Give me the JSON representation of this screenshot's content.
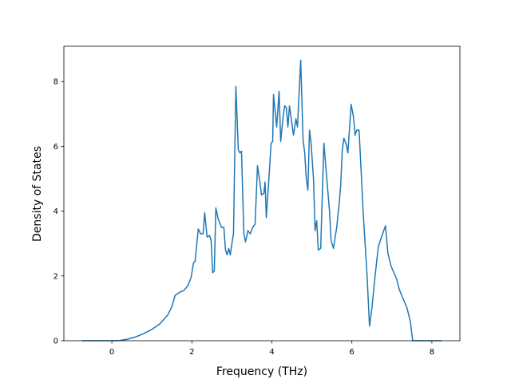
{
  "chart_data": {
    "type": "line",
    "x_label": "Frequency (THz)",
    "y_label": "Density of States",
    "xlim": [
      -1.2,
      8.7
    ],
    "xticks": [
      0,
      2,
      4,
      6,
      8
    ],
    "ylim": [
      0,
      9.09
    ],
    "yticks": [
      0,
      2,
      4,
      6,
      8
    ],
    "series": [
      {
        "color": "#1f77b4",
        "x": [
          -0.75,
          0,
          0.2,
          0.4,
          0.6,
          0.8,
          1.0,
          1.2,
          1.4,
          1.5,
          1.58,
          1.7,
          1.8,
          1.9,
          1.98,
          2.04,
          2.08,
          2.16,
          2.22,
          2.28,
          2.32,
          2.38,
          2.44,
          2.48,
          2.52,
          2.56,
          2.6,
          2.66,
          2.74,
          2.8,
          2.84,
          2.88,
          2.92,
          2.96,
          3.0,
          3.04,
          3.1,
          3.16,
          3.2,
          3.24,
          3.3,
          3.34,
          3.4,
          3.46,
          3.52,
          3.58,
          3.64,
          3.7,
          3.74,
          3.8,
          3.83,
          3.86,
          3.92,
          3.98,
          4.02,
          4.04,
          4.12,
          4.18,
          4.22,
          4.28,
          4.32,
          4.36,
          4.4,
          4.44,
          4.5,
          4.54,
          4.6,
          4.64,
          4.72,
          4.78,
          4.82,
          4.86,
          4.9,
          4.94,
          4.98,
          5.04,
          5.08,
          5.12,
          5.16,
          5.22,
          5.3,
          5.36,
          5.4,
          5.44,
          5.48,
          5.54,
          5.62,
          5.68,
          5.72,
          5.76,
          5.8,
          5.86,
          5.9,
          5.98,
          6.04,
          6.08,
          6.12,
          6.18,
          6.28,
          6.38,
          6.44,
          6.5,
          6.58,
          6.66,
          6.74,
          6.84,
          6.9,
          6.98,
          7.12,
          7.18,
          7.28,
          7.38,
          7.46,
          7.52,
          8.24
        ],
        "values": [
          0,
          0,
          0.01,
          0.05,
          0.12,
          0.22,
          0.35,
          0.52,
          0.8,
          1.05,
          1.4,
          1.5,
          1.55,
          1.7,
          1.95,
          2.4,
          2.45,
          3.45,
          3.3,
          3.3,
          3.95,
          3.2,
          3.25,
          3.1,
          2.1,
          2.15,
          4.1,
          3.75,
          3.5,
          3.5,
          2.8,
          2.65,
          2.85,
          2.65,
          3.0,
          3.3,
          7.85,
          5.9,
          5.8,
          5.85,
          3.3,
          3.05,
          3.4,
          3.3,
          3.5,
          3.6,
          5.4,
          4.9,
          4.5,
          4.55,
          4.9,
          3.8,
          4.9,
          6.1,
          6.15,
          7.6,
          6.6,
          7.7,
          6.15,
          6.9,
          7.25,
          7.2,
          6.6,
          7.25,
          6.7,
          6.35,
          6.85,
          6.6,
          8.66,
          6.2,
          5.8,
          5.0,
          4.65,
          6.5,
          6.1,
          5.0,
          3.4,
          3.7,
          2.8,
          2.85,
          6.1,
          5.2,
          4.6,
          4.0,
          3.1,
          2.85,
          3.5,
          4.2,
          4.8,
          5.9,
          6.25,
          6.05,
          5.8,
          7.3,
          6.9,
          6.35,
          6.5,
          6.5,
          4.0,
          2.0,
          0.45,
          1.0,
          2.0,
          2.9,
          3.2,
          3.55,
          2.7,
          2.3,
          1.9,
          1.6,
          1.3,
          1.0,
          0.6,
          0,
          0
        ]
      }
    ]
  }
}
